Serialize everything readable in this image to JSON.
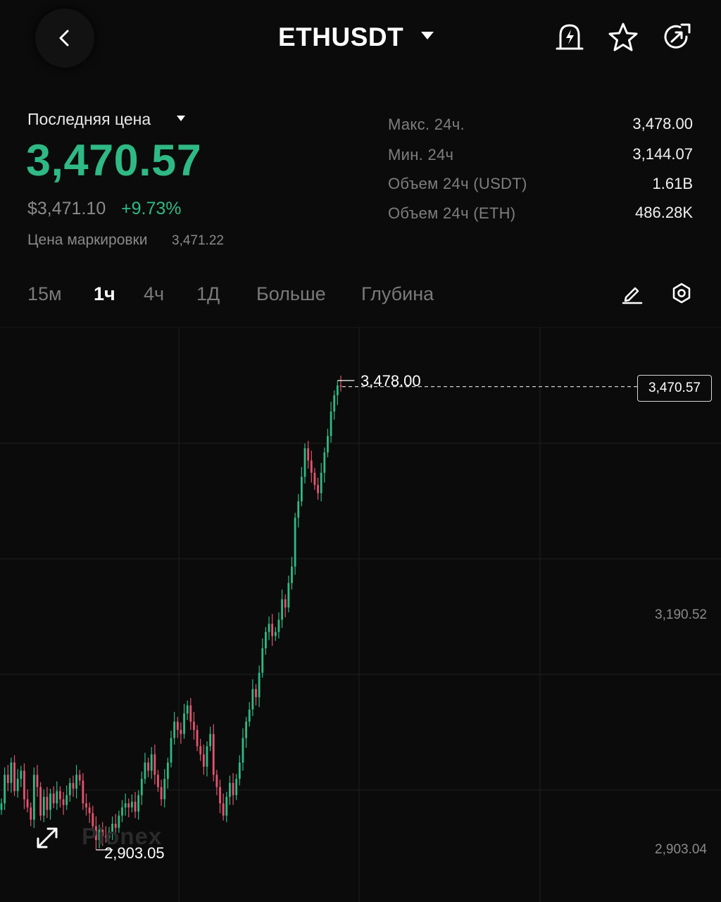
{
  "header": {
    "pair": "ETHUSDT",
    "icons": [
      "back-arrow-icon",
      "caret-down-icon",
      "price-alert-icon",
      "star-icon",
      "share-icon"
    ]
  },
  "price": {
    "last_label": "Последняя цена",
    "last_price": "3,470.57",
    "usd_price": "$3,471.10",
    "change_pct": "+9.73%",
    "mark_label": "Цена маркировки",
    "mark_value": "3,471.22"
  },
  "stats": [
    {
      "label": "Макс. 24ч.",
      "value": "3,478.00"
    },
    {
      "label": "Мин. 24ч",
      "value": "3,144.07"
    },
    {
      "label": "Объем 24ч (USDT)",
      "value": "1.61B"
    },
    {
      "label": "Объем 24ч (ETH)",
      "value": "486.28K"
    }
  ],
  "tabs": [
    {
      "label": "15м",
      "active": false
    },
    {
      "label": "1ч",
      "active": true
    },
    {
      "label": "4ч",
      "active": false
    },
    {
      "label": "1Д",
      "active": false
    },
    {
      "label": "Больше",
      "active": false
    },
    {
      "label": "Глубина",
      "active": false
    }
  ],
  "colors": {
    "up": "#2fb985",
    "down": "#e5546f",
    "background": "#0b0b0b",
    "grid": "#1f1f1f"
  },
  "chart": {
    "last_price_tag": "3,470.57",
    "axis_labels": [
      "3,190.52",
      "2,903.04"
    ],
    "high_label": "3,478.00",
    "low_label": "2,903.05",
    "watermark": "Pionex"
  },
  "chart_data": {
    "type": "candlestick",
    "interval": "1h",
    "y_axis_ticks": [
      3190.52,
      2903.04
    ],
    "last_price": 3470.57,
    "high": 3478.0,
    "low": 2903.05,
    "close": [
      2960,
      2995,
      2985,
      3010,
      2975,
      2990,
      3000,
      2965,
      2955,
      2940,
      2995,
      2980,
      2945,
      2968,
      2952,
      2972,
      2960,
      2975,
      2965,
      2958,
      2970,
      2985,
      2978,
      2995,
      2988,
      2960,
      2955,
      2948,
      2932,
      2915,
      2928,
      2920,
      2918,
      2925,
      2935,
      2930,
      2945,
      2955,
      2960,
      2955,
      2962,
      2950,
      2970,
      2990,
      3010,
      3000,
      3020,
      2995,
      2980,
      2965,
      2990,
      3010,
      3040,
      3060,
      3050,
      3045,
      3070,
      3080,
      3060,
      3050,
      3030,
      3020,
      3005,
      3030,
      3045,
      2995,
      2980,
      2960,
      2945,
      2968,
      2985,
      2970,
      2990,
      3010,
      3040,
      3060,
      3075,
      3100,
      3090,
      3120,
      3150,
      3170,
      3180,
      3165,
      3170,
      3185,
      3210,
      3200,
      3230,
      3250,
      3310,
      3330,
      3360,
      3395,
      3380,
      3365,
      3350,
      3340,
      3365,
      3390,
      3410,
      3440,
      3460,
      3472,
      3470.57
    ]
  }
}
